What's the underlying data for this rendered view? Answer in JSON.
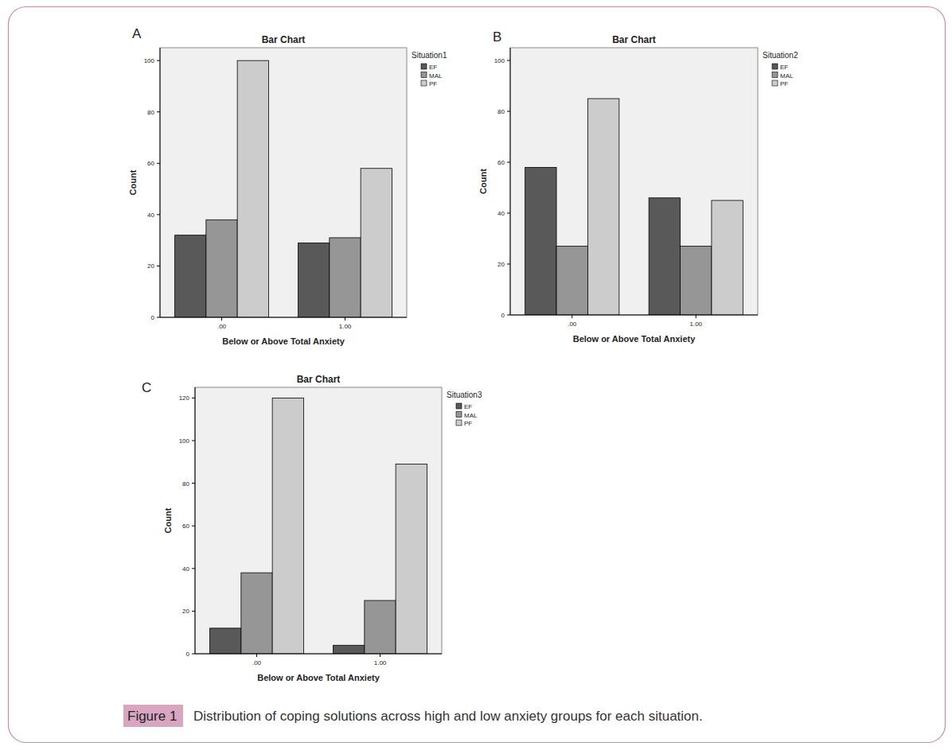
{
  "chart_data": [
    {
      "type": "bar",
      "panel_label": "A",
      "title": "Bar Chart",
      "x_label": "Below or Above Total Anxiety",
      "y_label": "Count",
      "legend_title": "Situation1",
      "legend": "right",
      "grid": false,
      "categories": [
        ".00",
        "1.00"
      ],
      "series": [
        {
          "name": "EF",
          "color": "#595959",
          "values": [
            32,
            29
          ]
        },
        {
          "name": "MAL",
          "color": "#969696",
          "values": [
            38,
            31
          ]
        },
        {
          "name": "PF",
          "color": "#cccccc",
          "values": [
            100,
            58
          ]
        }
      ],
      "ylim": [
        0,
        105
      ],
      "yticks": [
        0,
        20,
        40,
        60,
        80,
        100
      ]
    },
    {
      "type": "bar",
      "panel_label": "B",
      "title": "Bar Chart",
      "x_label": "Below or Above Total Anxiety",
      "y_label": "Count",
      "legend_title": "Situation2",
      "legend": "right",
      "grid": false,
      "categories": [
        ".00",
        "1.00"
      ],
      "series": [
        {
          "name": "EF",
          "color": "#595959",
          "values": [
            58,
            46
          ]
        },
        {
          "name": "MAL",
          "color": "#969696",
          "values": [
            27,
            27
          ]
        },
        {
          "name": "PF",
          "color": "#cccccc",
          "values": [
            85,
            45
          ]
        }
      ],
      "ylim": [
        0,
        105
      ],
      "yticks": [
        0,
        20,
        40,
        60,
        80,
        100
      ]
    },
    {
      "type": "bar",
      "panel_label": "C",
      "title": "Bar Chart",
      "x_label": "Below or Above Total Anxiety",
      "y_label": "Count",
      "legend_title": "Situation3",
      "legend": "right",
      "grid": false,
      "categories": [
        ".00",
        "1.00"
      ],
      "series": [
        {
          "name": "EF",
          "color": "#595959",
          "values": [
            12,
            4
          ]
        },
        {
          "name": "MAL",
          "color": "#969696",
          "values": [
            38,
            25
          ]
        },
        {
          "name": "PF",
          "color": "#cccccc",
          "values": [
            120,
            89
          ]
        }
      ],
      "ylim": [
        0,
        125
      ],
      "yticks": [
        0,
        20,
        40,
        60,
        80,
        100,
        120
      ]
    }
  ],
  "figure": {
    "label": "Figure 1",
    "caption": "Distribution of coping solutions across high and low anxiety groups for each situation."
  }
}
